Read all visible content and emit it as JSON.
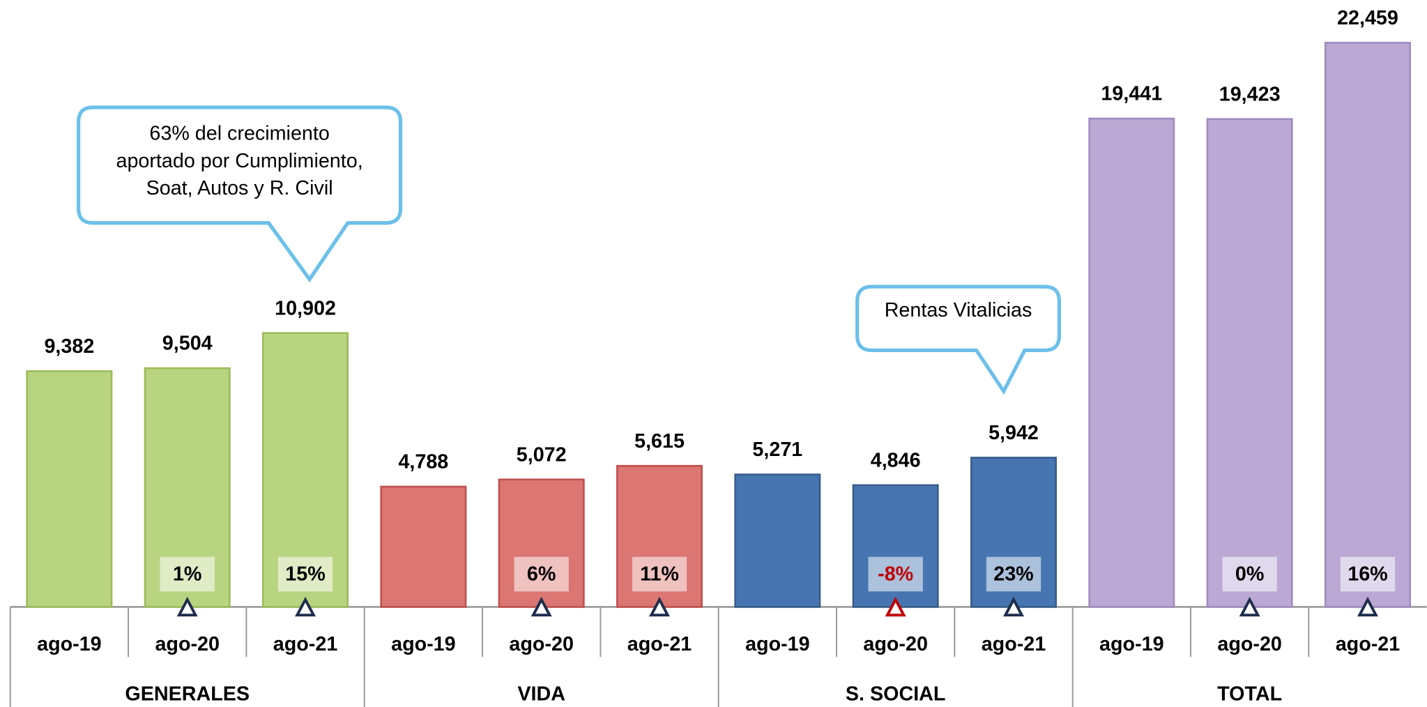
{
  "chart_data": {
    "type": "bar",
    "groups": [
      {
        "name": "GENERALES",
        "color": "#b9d480",
        "stroke": "#9bbb59",
        "categories": [
          "ago-19",
          "ago-20",
          "ago-21"
        ],
        "values": [
          9382,
          9504,
          10902
        ],
        "value_labels": [
          "9,382",
          "9,504",
          "10,902"
        ],
        "growth": [
          null,
          1,
          15
        ],
        "growth_labels": [
          null,
          "1%",
          "15%"
        ]
      },
      {
        "name": "VIDA",
        "color": "#db7672",
        "stroke": "#c0504d",
        "categories": [
          "ago-19",
          "ago-20",
          "ago-21"
        ],
        "values": [
          4788,
          5072,
          5615
        ],
        "value_labels": [
          "4,788",
          "5,072",
          "5,615"
        ],
        "growth": [
          null,
          6,
          11
        ],
        "growth_labels": [
          null,
          "6%",
          "11%"
        ]
      },
      {
        "name": "S. SOCIAL",
        "color": "#4675b1",
        "stroke": "#385d8a",
        "categories": [
          "ago-19",
          "ago-20",
          "ago-21"
        ],
        "values": [
          5271,
          4846,
          5942
        ],
        "value_labels": [
          "5,271",
          "4,846",
          "5,942"
        ],
        "growth": [
          null,
          -8,
          23
        ],
        "growth_labels": [
          null,
          "-8%",
          "23%"
        ]
      },
      {
        "name": "TOTAL",
        "color": "#bba8d4",
        "stroke": "#9f8abf",
        "categories": [
          "ago-19",
          "ago-20",
          "ago-21"
        ],
        "values": [
          19441,
          19423,
          22459
        ],
        "value_labels": [
          "19,441",
          "19,423",
          "22,459"
        ],
        "growth": [
          null,
          0,
          16
        ],
        "growth_labels": [
          null,
          "0%",
          "16%"
        ]
      }
    ],
    "annotations": [
      {
        "lines": [
          "63% del crecimiento",
          "aportado por Cumplimiento,",
          "Soat, Autos y R. Civil"
        ]
      },
      {
        "lines": [
          "Rentas Vitalicias"
        ]
      }
    ]
  }
}
